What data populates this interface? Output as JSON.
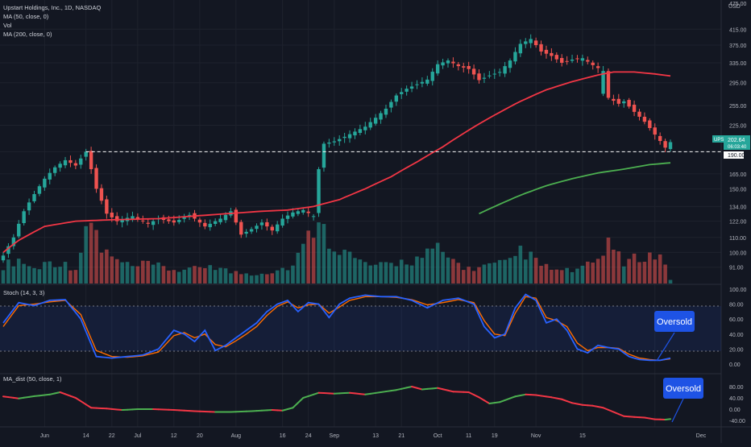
{
  "legend": {
    "symbol_line": "Upstart Holdings, Inc., 1D, NASDAQ",
    "ma50_line": "MA (50, close, 0)",
    "vol_line": "Vol",
    "ma200_line": "MA (200, close, 0)"
  },
  "currency": "USD",
  "price_badge": {
    "ticker": "UPST",
    "price": "202.64",
    "countdown": "06:03:40",
    "level": "190.00"
  },
  "stoch_title": "Stoch (14, 3, 3)",
  "madist_title": "MA_dist (50, close, 1)",
  "callouts": {
    "stoch": "Oversold",
    "madist": "Oversold"
  },
  "colors": {
    "background": "#131722",
    "up": "#26a69a",
    "down": "#ef5350",
    "ma50": "#f23645",
    "ma200": "#4caf50",
    "stoch_k": "#2962ff",
    "stoch_d": "#ff6d00",
    "callout": "#1e53e5"
  },
  "chart_data": {
    "type": "candlestick",
    "price_axis_ticks": [
      "475.00",
      "415.00",
      "375.00",
      "335.00",
      "295.00",
      "255.00",
      "225.00",
      "190.00",
      "165.00",
      "150.00",
      "134.00",
      "122.00",
      "110.00",
      "100.00",
      "91.00"
    ],
    "price_axis_scale": "log",
    "stoch_axis_ticks": [
      "100.00",
      "80.00",
      "60.00",
      "40.00",
      "20.00",
      "0.00"
    ],
    "madist_axis_ticks": [
      "80.00",
      "40.00",
      "0.00",
      "-40.00"
    ],
    "x_tick_labels": [
      {
        "label": "Jun",
        "date": "2021-06-01"
      },
      {
        "label": "14",
        "date": "2021-06-14"
      },
      {
        "label": "22",
        "date": "2021-06-22"
      },
      {
        "label": "Jul",
        "date": "2021-07-01"
      },
      {
        "label": "12",
        "date": "2021-07-12"
      },
      {
        "label": "20",
        "date": "2021-07-20"
      },
      {
        "label": "Aug",
        "date": "2021-08-02"
      },
      {
        "label": "16",
        "date": "2021-08-16"
      },
      {
        "label": "24",
        "date": "2021-08-24"
      },
      {
        "label": "Sep",
        "date": "2021-09-01"
      },
      {
        "label": "13",
        "date": "2021-09-13"
      },
      {
        "label": "21",
        "date": "2021-09-21"
      },
      {
        "label": "Oct",
        "date": "2021-10-01"
      },
      {
        "label": "11",
        "date": "2021-10-11"
      },
      {
        "label": "19",
        "date": "2021-10-19"
      },
      {
        "label": "Nov",
        "date": "2021-11-01"
      },
      {
        "label": "15",
        "date": "2021-11-15"
      },
      {
        "label": "Dec",
        "date": "2021-12-01"
      }
    ],
    "support_level": 190,
    "ma50_key": [
      [
        0,
        100
      ],
      [
        3,
        108
      ],
      [
        8,
        118
      ],
      [
        14,
        122
      ],
      [
        20,
        123
      ],
      [
        30,
        124
      ],
      [
        40,
        127
      ],
      [
        50,
        130
      ],
      [
        55,
        131
      ],
      [
        60,
        134
      ],
      [
        65,
        140
      ],
      [
        70,
        150
      ],
      [
        75,
        162
      ],
      [
        80,
        178
      ],
      [
        85,
        196
      ],
      [
        90,
        218
      ],
      [
        95,
        240
      ],
      [
        100,
        262
      ],
      [
        105,
        282
      ],
      [
        110,
        297
      ],
      [
        115,
        310
      ],
      [
        118,
        316
      ],
      [
        122,
        316
      ],
      [
        126,
        312
      ],
      [
        129,
        308
      ]
    ],
    "ma200_key": [
      [
        92,
        128
      ],
      [
        95,
        134
      ],
      [
        100,
        144
      ],
      [
        105,
        153
      ],
      [
        110,
        160
      ],
      [
        115,
        166
      ],
      [
        120,
        170
      ],
      [
        125,
        175
      ],
      [
        129,
        177
      ]
    ],
    "stoch_k_key": [
      [
        0,
        55
      ],
      [
        3,
        82
      ],
      [
        6,
        78
      ],
      [
        9,
        85
      ],
      [
        12,
        86
      ],
      [
        15,
        60
      ],
      [
        18,
        10
      ],
      [
        21,
        8
      ],
      [
        24,
        10
      ],
      [
        27,
        12
      ],
      [
        30,
        20
      ],
      [
        33,
        45
      ],
      [
        35,
        40
      ],
      [
        37,
        30
      ],
      [
        39,
        45
      ],
      [
        41,
        18
      ],
      [
        43,
        25
      ],
      [
        45,
        35
      ],
      [
        47,
        45
      ],
      [
        49,
        55
      ],
      [
        51,
        70
      ],
      [
        53,
        80
      ],
      [
        55,
        85
      ],
      [
        57,
        70
      ],
      [
        59,
        82
      ],
      [
        61,
        80
      ],
      [
        63,
        62
      ],
      [
        65,
        80
      ],
      [
        67,
        88
      ],
      [
        70,
        92
      ],
      [
        73,
        90
      ],
      [
        76,
        90
      ],
      [
        79,
        85
      ],
      [
        82,
        75
      ],
      [
        85,
        85
      ],
      [
        88,
        88
      ],
      [
        91,
        80
      ],
      [
        93,
        50
      ],
      [
        95,
        35
      ],
      [
        97,
        40
      ],
      [
        99,
        75
      ],
      [
        101,
        93
      ],
      [
        103,
        85
      ],
      [
        105,
        55
      ],
      [
        107,
        60
      ],
      [
        109,
        45
      ],
      [
        111,
        20
      ],
      [
        113,
        15
      ],
      [
        115,
        25
      ],
      [
        117,
        22
      ],
      [
        119,
        20
      ],
      [
        121,
        10
      ],
      [
        123,
        6
      ],
      [
        125,
        5
      ],
      [
        127,
        5
      ],
      [
        129,
        8
      ]
    ],
    "stoch_d_key": [
      [
        0,
        50
      ],
      [
        3,
        78
      ],
      [
        6,
        80
      ],
      [
        9,
        83
      ],
      [
        12,
        85
      ],
      [
        15,
        66
      ],
      [
        18,
        18
      ],
      [
        21,
        10
      ],
      [
        24,
        9
      ],
      [
        27,
        11
      ],
      [
        30,
        16
      ],
      [
        33,
        38
      ],
      [
        35,
        42
      ],
      [
        37,
        35
      ],
      [
        39,
        40
      ],
      [
        41,
        26
      ],
      [
        43,
        23
      ],
      [
        45,
        31
      ],
      [
        47,
        40
      ],
      [
        49,
        50
      ],
      [
        51,
        65
      ],
      [
        53,
        77
      ],
      [
        55,
        83
      ],
      [
        57,
        75
      ],
      [
        59,
        79
      ],
      [
        61,
        80
      ],
      [
        63,
        68
      ],
      [
        65,
        76
      ],
      [
        67,
        85
      ],
      [
        70,
        90
      ],
      [
        73,
        90
      ],
      [
        76,
        89
      ],
      [
        79,
        86
      ],
      [
        82,
        79
      ],
      [
        85,
        82
      ],
      [
        88,
        86
      ],
      [
        91,
        82
      ],
      [
        93,
        58
      ],
      [
        95,
        40
      ],
      [
        97,
        38
      ],
      [
        99,
        68
      ],
      [
        101,
        90
      ],
      [
        103,
        88
      ],
      [
        105,
        62
      ],
      [
        107,
        58
      ],
      [
        109,
        50
      ],
      [
        111,
        28
      ],
      [
        113,
        18
      ],
      [
        115,
        22
      ],
      [
        117,
        22
      ],
      [
        119,
        21
      ],
      [
        121,
        13
      ],
      [
        123,
        8
      ],
      [
        125,
        6
      ],
      [
        127,
        5
      ],
      [
        129,
        7
      ]
    ],
    "madist_key": [
      [
        0,
        45
      ],
      [
        3,
        38
      ],
      [
        6,
        46
      ],
      [
        9,
        52
      ],
      [
        11,
        60
      ],
      [
        14,
        40
      ],
      [
        17,
        5
      ],
      [
        20,
        2
      ],
      [
        23,
        -3
      ],
      [
        26,
        0
      ],
      [
        29,
        0
      ],
      [
        32,
        -2
      ],
      [
        35,
        -5
      ],
      [
        38,
        -8
      ],
      [
        41,
        -10
      ],
      [
        44,
        -10
      ],
      [
        47,
        -8
      ],
      [
        50,
        -5
      ],
      [
        52,
        -3
      ],
      [
        54,
        -5
      ],
      [
        56,
        5
      ],
      [
        58,
        40
      ],
      [
        61,
        58
      ],
      [
        64,
        55
      ],
      [
        67,
        58
      ],
      [
        70,
        52
      ],
      [
        73,
        60
      ],
      [
        76,
        68
      ],
      [
        79,
        80
      ],
      [
        81,
        70
      ],
      [
        84,
        75
      ],
      [
        87,
        62
      ],
      [
        90,
        60
      ],
      [
        92,
        42
      ],
      [
        94,
        20
      ],
      [
        96,
        25
      ],
      [
        99,
        45
      ],
      [
        101,
        52
      ],
      [
        103,
        50
      ],
      [
        106,
        42
      ],
      [
        108,
        35
      ],
      [
        110,
        22
      ],
      [
        112,
        15
      ],
      [
        114,
        12
      ],
      [
        116,
        5
      ],
      [
        118,
        -10
      ],
      [
        120,
        -25
      ],
      [
        122,
        -28
      ],
      [
        124,
        -30
      ],
      [
        126,
        -36
      ],
      [
        128,
        -37
      ],
      [
        129,
        -35
      ]
    ],
    "note": "Candle OHLC and volume series are approximated from the visible chart; values in price units (USD)."
  }
}
